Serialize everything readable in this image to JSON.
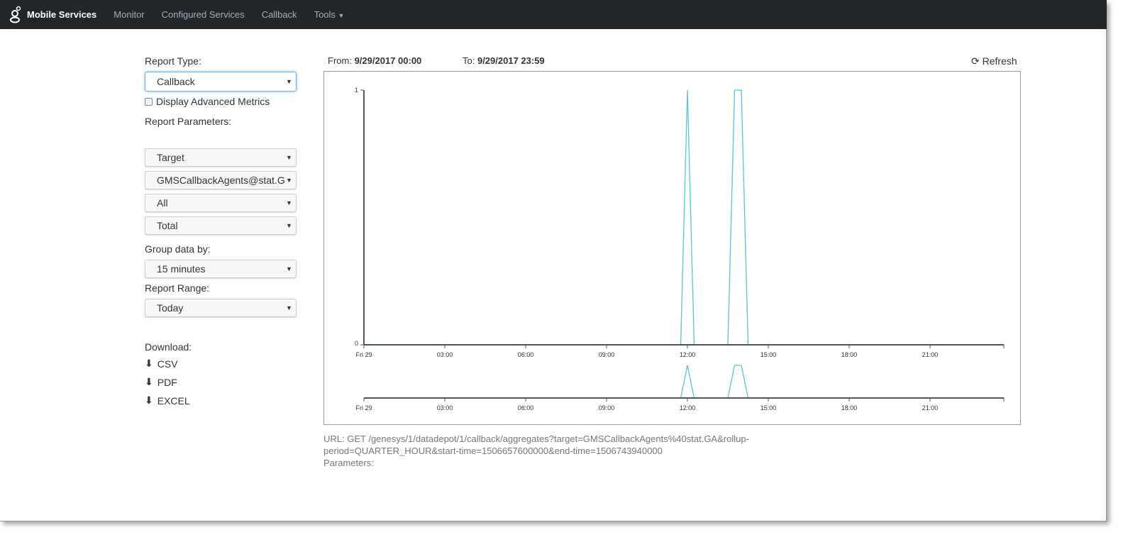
{
  "nav": {
    "brand": "Mobile Services",
    "items": [
      "Monitor",
      "Configured Services",
      "Callback",
      "Tools"
    ],
    "logo_icon": "genesys-logo"
  },
  "form": {
    "report_type_label": "Report Type:",
    "report_type": "Callback",
    "advanced_label": "Display Advanced Metrics",
    "advanced_checked": false,
    "params_label": "Report Parameters:",
    "params": [
      "Target",
      "GMSCallbackAgents@stat.GA",
      "All",
      "Total"
    ],
    "group_label": "Group data by:",
    "group": "15 minutes",
    "range_label": "Report Range:",
    "range": "Today",
    "download_label": "Download:",
    "downloads": [
      "CSV",
      "PDF",
      "EXCEL"
    ]
  },
  "header": {
    "from_label": "From:",
    "from": "9/29/2017 00:00",
    "to_label": "To:",
    "to": "9/29/2017 23:59",
    "refresh": "Refresh"
  },
  "url": {
    "line": "URL: GET /genesys/1/datadepot/1/callback/aggregates?target=GMSCallbackAgents%40stat.GA&rollup-period=QUARTER_HOUR&start-time=1506657600000&end-time=1506743940000",
    "params": "Parameters:"
  },
  "chart_data": {
    "type": "line",
    "color": "#5bc0de",
    "x_unit": "hour",
    "xlim": [
      0,
      23.75
    ],
    "ylim": [
      0,
      1
    ],
    "yticks": [
      "0",
      "1"
    ],
    "xticks": [
      {
        "v": 0,
        "l": "Fri 29"
      },
      {
        "v": 3,
        "l": "03:00"
      },
      {
        "v": 6,
        "l": "06:00"
      },
      {
        "v": 9,
        "l": "09:00"
      },
      {
        "v": 12,
        "l": "12:00"
      },
      {
        "v": 15,
        "l": "15:00"
      },
      {
        "v": 18,
        "l": "18:00"
      },
      {
        "v": 21,
        "l": "21:00"
      }
    ],
    "points": [
      [
        11.75,
        0
      ],
      [
        12,
        1
      ],
      [
        12.25,
        0
      ],
      [
        13.5,
        0
      ],
      [
        13.75,
        1
      ],
      [
        14,
        1
      ],
      [
        14.25,
        0
      ]
    ],
    "has_overview": true
  }
}
